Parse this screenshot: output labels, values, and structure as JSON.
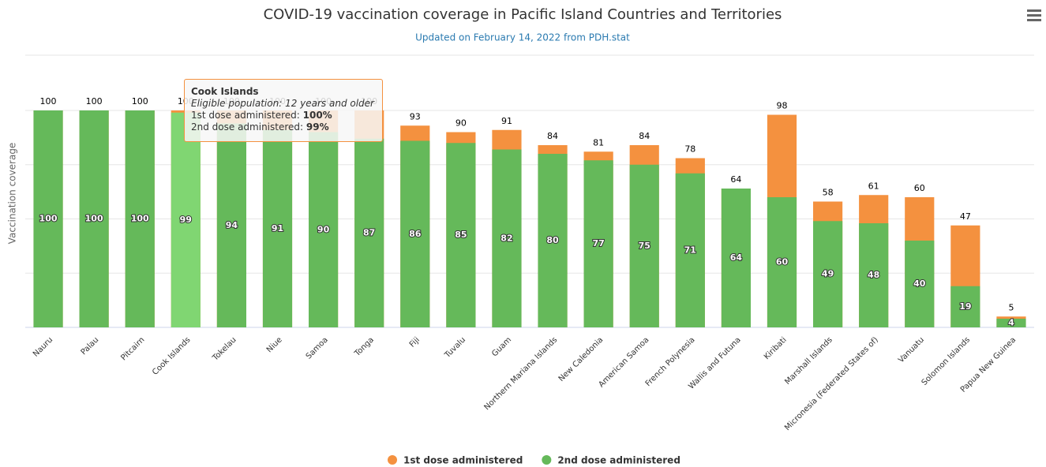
{
  "chart_data": {
    "type": "overlap-bar",
    "title": "COVID-19 vaccination coverage in Pacific Island Countries and Territories",
    "subtitle": "Updated on February 14, 2022 from PDH.stat",
    "y_label": "Vaccination coverage",
    "categories": [
      "Nauru",
      "Palau",
      "Pitcairn",
      "Cook Islands",
      "Tokelau",
      "Niue",
      "Samoa",
      "Tonga",
      "Fiji",
      "Tuvalu",
      "Guam",
      "Northern Mariana Islands",
      "New Caledonia",
      "American Samoa",
      "French Polynesia",
      "Wallis and Futuna",
      "Kiribati",
      "Marshall Islands",
      "Micronesia (Federated States of)",
      "Vanuatu",
      "Solomon Islands",
      "Papua New Guinea"
    ],
    "series": [
      {
        "name": "1st dose administered",
        "color": "#f4913f",
        "values": [
          100,
          100,
          100,
          100,
          100,
          100,
          100,
          100,
          93,
          90,
          91,
          84,
          81,
          84,
          78,
          64,
          98,
          58,
          61,
          60,
          47,
          5
        ]
      },
      {
        "name": "2nd dose administered",
        "color": "#65b95a",
        "values": [
          100,
          100,
          100,
          99,
          94,
          91,
          90,
          87,
          86,
          85,
          82,
          80,
          77,
          75,
          71,
          64,
          60,
          49,
          48,
          40,
          19,
          4
        ]
      }
    ],
    "ylim": [
      0,
      100
    ],
    "yticks": [
      0,
      25,
      50,
      75,
      100
    ],
    "grid": true,
    "legend": "bottom",
    "tooltip": {
      "title": "Cook Islands",
      "note": "Eligible population: 12 years and older",
      "rows": [
        [
          "1st dose administered: ",
          "100%"
        ],
        [
          "2nd dose administered: ",
          "99%"
        ]
      ]
    }
  }
}
